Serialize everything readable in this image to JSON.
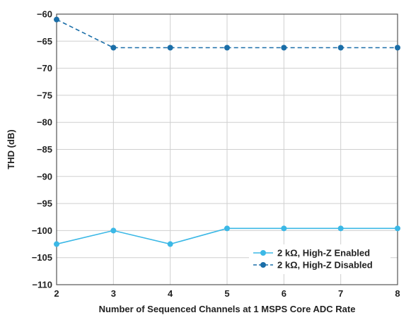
{
  "chart_data": {
    "type": "line",
    "title": "",
    "xlabel": "Number of Sequenced Channels at 1 MSPS Core ADC Rate",
    "ylabel": "THD (dB)",
    "x": [
      2,
      3,
      4,
      5,
      6,
      7,
      8
    ],
    "xlim": [
      2,
      8
    ],
    "ylim": [
      -110,
      -60
    ],
    "xticks": [
      "2",
      "3",
      "4",
      "5",
      "6",
      "7",
      "8"
    ],
    "yticks": [
      "-60",
      "-65",
      "-70",
      "-75",
      "-80",
      "-85",
      "-90",
      "-95",
      "-100",
      "-105",
      "-110"
    ],
    "ytick_values": [
      -60,
      -65,
      -70,
      -75,
      -80,
      -85,
      -90,
      -95,
      -100,
      -105,
      -110
    ],
    "grid": true,
    "legend_position": "bottom-right",
    "series": [
      {
        "name": "2 kΩ, High-Z Enabled",
        "values": [
          -102.5,
          -100.0,
          -102.5,
          -99.6,
          -99.6,
          -99.6,
          -99.6
        ],
        "color": "#3bb8e6",
        "dash": "solid"
      },
      {
        "name": "2 kΩ, High-Z Disabled",
        "values": [
          -61.0,
          -66.2,
          -66.2,
          -66.2,
          -66.2,
          -66.2,
          -66.2
        ],
        "color": "#1a6ea8",
        "dash": "dashed"
      }
    ]
  }
}
